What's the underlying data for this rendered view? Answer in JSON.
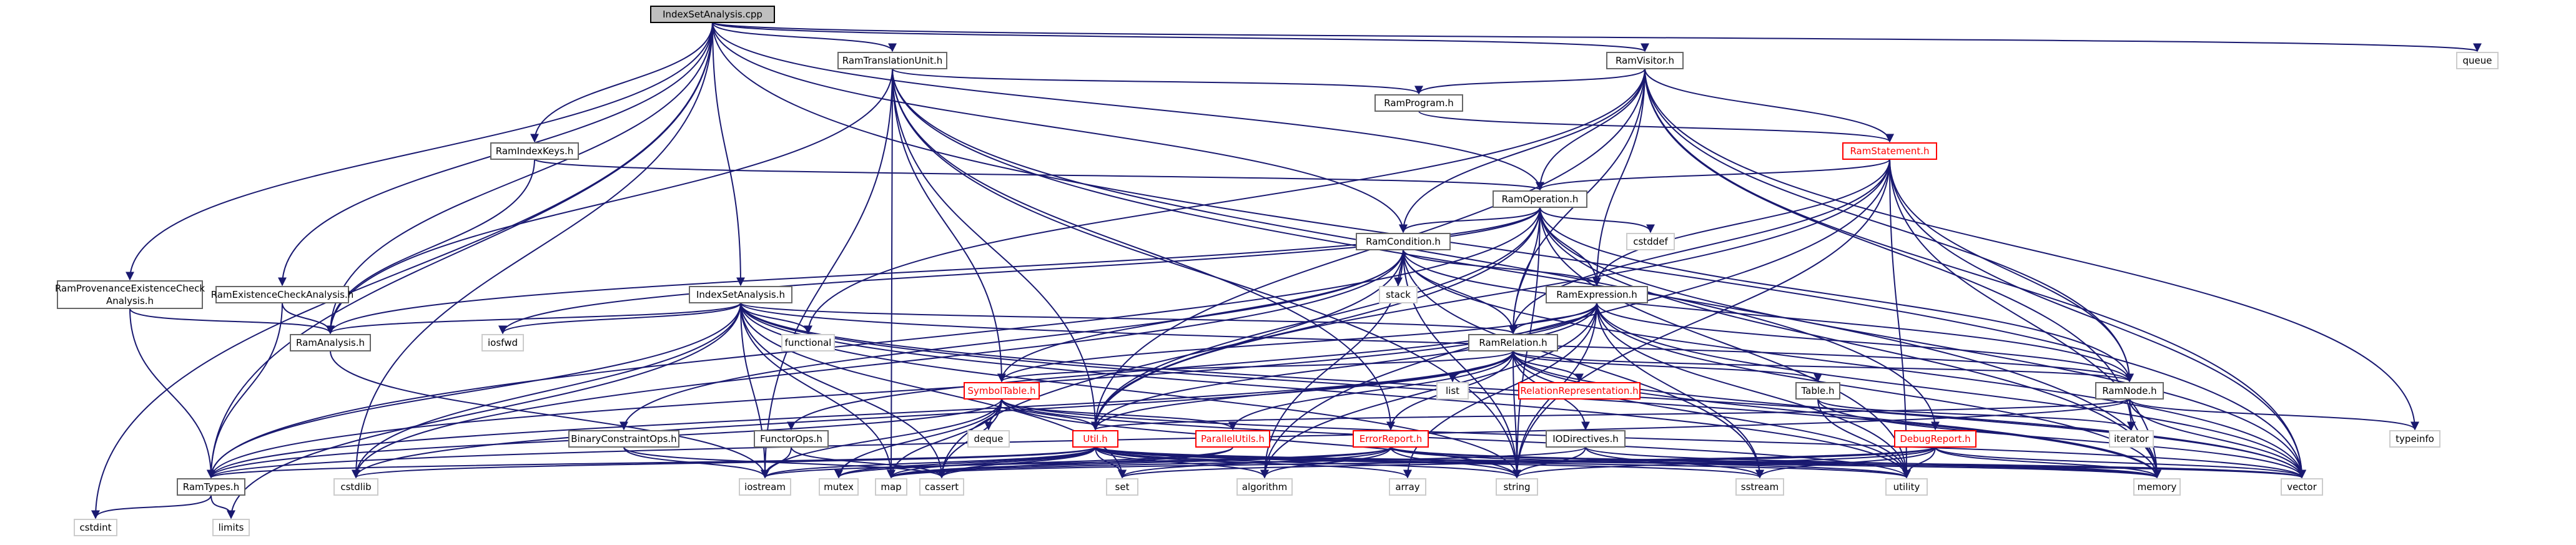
{
  "title": "IndexSetAnalysis.cpp",
  "colors": {
    "edge": "#191970",
    "root_fill": "#bfbfbf",
    "text": "#000000",
    "red_text": "#ff0000"
  },
  "nodes": {
    "root": "IndexSetAnalysis.cpp",
    "ramTranslationUnit": "RamTranslationUnit.h",
    "ramVisitor": "RamVisitor.h",
    "queue": "queue",
    "ramProgram": "RamProgram.h",
    "ramIndexKeys": "RamIndexKeys.h",
    "ramStatement": "RamStatement.h",
    "ramOperation": "RamOperation.h",
    "cstddef": "cstddef",
    "ramCondition": "RamCondition.h",
    "stack": "stack",
    "ramExpression": "RamExpression.h",
    "ramProvenance": "RamProvenanceExistenceCheck\nAnalysis.h",
    "ramExistenceCheck": "RamExistenceCheckAnalysis.h",
    "indexSetAnalysisH": "IndexSetAnalysis.h",
    "iosfwd": "iosfwd",
    "functional": "functional",
    "ramAnalysis": "RamAnalysis.h",
    "ramRelation": "RamRelation.h",
    "list": "list",
    "relationRepresentation": "RelationRepresentation.h",
    "table": "Table.h",
    "ramNode": "RamNode.h",
    "symbolTable": "SymbolTable.h",
    "binaryConstraintOps": "BinaryConstraintOps.h",
    "functorOps": "FunctorOps.h",
    "deque": "deque",
    "util": "Util.h",
    "parallelUtils": "ParallelUtils.h",
    "errorReport": "ErrorReport.h",
    "ioDirectives": "IODirectives.h",
    "debugReport": "DebugReport.h",
    "iterator": "iterator",
    "typeinfo": "typeinfo",
    "ramTypes": "RamTypes.h",
    "cstdlib": "cstdlib",
    "iostream": "iostream",
    "mutex": "mutex",
    "map": "map",
    "cassert": "cassert",
    "set": "set",
    "algorithm": "algorithm",
    "array": "array",
    "string": "string",
    "sstream": "sstream",
    "utility": "utility",
    "memory": "memory",
    "vector": "vector",
    "cstdint": "cstdint",
    "limits": "limits"
  }
}
